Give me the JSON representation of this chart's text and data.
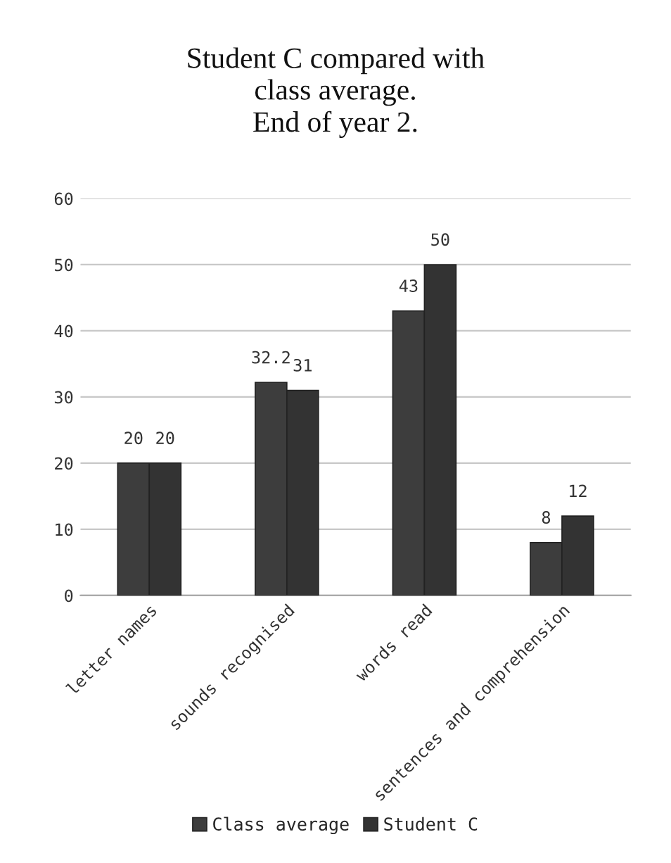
{
  "chart_data": {
    "type": "bar",
    "title": "Student C compared with\nclass average.\nEnd of year 2.",
    "categories": [
      "letter names",
      "sounds recognised",
      "words read",
      "sentences and comprehension"
    ],
    "series": [
      {
        "name": "Class average",
        "color": "#3d3d3d",
        "values": [
          20,
          32.2,
          43,
          8
        ]
      },
      {
        "name": "Student C",
        "color": "#333333",
        "values": [
          20,
          31,
          50,
          12
        ]
      }
    ],
    "ylim": [
      0,
      60
    ],
    "yticks": [
      0,
      10,
      20,
      30,
      40,
      50,
      60
    ],
    "grid": "y",
    "legend": "bottom",
    "data_labels": true
  }
}
